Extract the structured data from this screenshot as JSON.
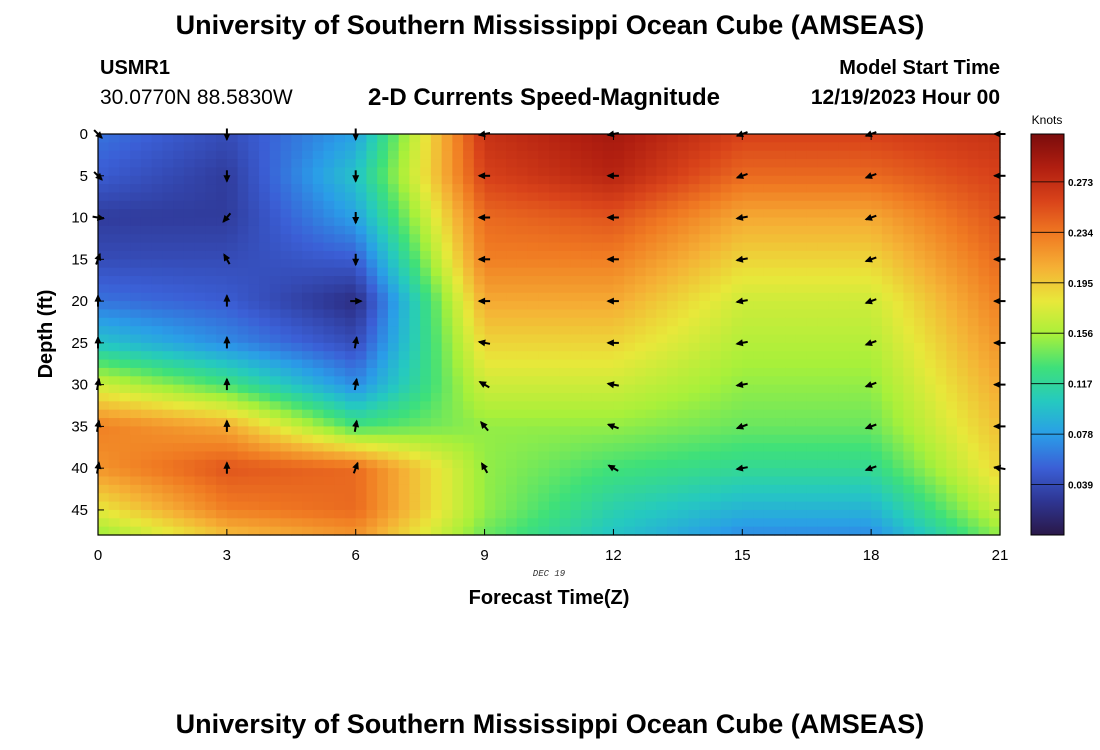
{
  "header": {
    "title": "University of Southern Mississippi Ocean Cube (AMSEAS)",
    "station_id": "USMR1",
    "coordinates": "30.0770N  88.5830W",
    "subtitle": "2-D Currents Speed-Magnitude",
    "model_start_label": "Model Start Time",
    "model_start_value": "12/19/2023 Hour 00"
  },
  "footer": {
    "title": "University of Southern Mississippi Ocean Cube (AMSEAS)"
  },
  "colors": {
    "colormap": [
      "#2a1848",
      "#2e3591",
      "#3b5fd6",
      "#2a9de8",
      "#25c9c0",
      "#3ee07a",
      "#a8f03a",
      "#e8e83a",
      "#f5b035",
      "#f07a22",
      "#d9431a",
      "#b01e10",
      "#7a0c0c"
    ],
    "arrow": "#000000"
  },
  "chart_data": {
    "type": "heatmap",
    "title": "2-D Currents Speed-Magnitude",
    "xlabel": "Forecast Time(Z)",
    "ylabel": "Depth (ft)",
    "x_ticks": [
      0,
      3,
      6,
      9,
      12,
      15,
      18,
      21
    ],
    "y_ticks": [
      0,
      5,
      10,
      15,
      20,
      25,
      30,
      35,
      40,
      45
    ],
    "xlim": [
      0,
      21
    ],
    "ylim": [
      0,
      48
    ],
    "date_label": "DEC 19",
    "colorbar": {
      "label": "Knots",
      "ticks": [
        "0.039",
        "0.078",
        "0.117",
        "0.156",
        "0.195",
        "0.234",
        "0.273"
      ],
      "tick_values": [
        0.039,
        0.078,
        0.117,
        0.156,
        0.195,
        0.234,
        0.273
      ],
      "min": 0.0,
      "max": 0.31
    },
    "hours": [
      0,
      3,
      6,
      9,
      12,
      15,
      18,
      21
    ],
    "depths": [
      0,
      5,
      10,
      15,
      20,
      25,
      30,
      35,
      40,
      45,
      48
    ],
    "speed_knots": [
      [
        0.06,
        0.04,
        0.08,
        0.27,
        0.29,
        0.26,
        0.26,
        0.27
      ],
      [
        0.05,
        0.03,
        0.1,
        0.26,
        0.28,
        0.24,
        0.24,
        0.26
      ],
      [
        0.03,
        0.03,
        0.08,
        0.24,
        0.25,
        0.21,
        0.21,
        0.25
      ],
      [
        0.04,
        0.04,
        0.05,
        0.23,
        0.23,
        0.19,
        0.19,
        0.24
      ],
      [
        0.06,
        0.05,
        0.02,
        0.21,
        0.21,
        0.17,
        0.17,
        0.23
      ],
      [
        0.1,
        0.07,
        0.04,
        0.19,
        0.19,
        0.16,
        0.16,
        0.22
      ],
      [
        0.17,
        0.13,
        0.07,
        0.17,
        0.17,
        0.15,
        0.15,
        0.21
      ],
      [
        0.23,
        0.21,
        0.13,
        0.15,
        0.15,
        0.14,
        0.14,
        0.2
      ],
      [
        0.22,
        0.25,
        0.24,
        0.15,
        0.13,
        0.12,
        0.12,
        0.19
      ],
      [
        0.18,
        0.23,
        0.24,
        0.15,
        0.11,
        0.09,
        0.09,
        0.17
      ],
      [
        0.15,
        0.2,
        0.22,
        0.14,
        0.1,
        0.07,
        0.07,
        0.15
      ]
    ],
    "vector_depths": [
      0,
      5,
      10,
      15,
      20,
      25,
      30,
      35,
      40
    ],
    "vector_directions_deg": [
      [
        135,
        180,
        180,
        260,
        260,
        250,
        250,
        270
      ],
      [
        135,
        180,
        180,
        270,
        270,
        250,
        250,
        270
      ],
      [
        100,
        220,
        180,
        270,
        270,
        260,
        250,
        270
      ],
      [
        20,
        330,
        180,
        270,
        270,
        260,
        250,
        270
      ],
      [
        0,
        0,
        90,
        270,
        270,
        260,
        250,
        270
      ],
      [
        0,
        0,
        10,
        280,
        270,
        260,
        250,
        270
      ],
      [
        10,
        0,
        10,
        300,
        280,
        260,
        250,
        270
      ],
      [
        10,
        0,
        10,
        320,
        290,
        250,
        250,
        270
      ],
      [
        10,
        0,
        20,
        330,
        300,
        260,
        250,
        280
      ]
    ]
  }
}
